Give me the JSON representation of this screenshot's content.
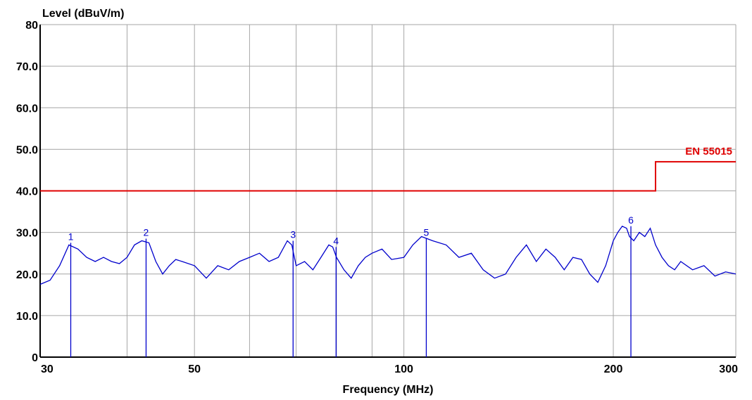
{
  "chart_data": {
    "type": "line",
    "title": "",
    "ylabel": "Level (dBuV/m)",
    "xlabel": "Frequency (MHz)",
    "x_scale": "log",
    "xlim": [
      30,
      300
    ],
    "ylim": [
      0,
      80
    ],
    "grid": true,
    "x_ticks": [
      {
        "value": 30,
        "label": "30"
      },
      {
        "value": 50,
        "label": "50"
      },
      {
        "value": 100,
        "label": "100"
      },
      {
        "value": 200,
        "label": "200"
      },
      {
        "value": 300,
        "label": "300"
      }
    ],
    "x_minor_grid": [
      40,
      60,
      70,
      80,
      90
    ],
    "y_ticks": [
      {
        "value": 0,
        "label": "0"
      },
      {
        "value": 10,
        "label": "10.0"
      },
      {
        "value": 20,
        "label": "20.0"
      },
      {
        "value": 30,
        "label": "30.0"
      },
      {
        "value": 40,
        "label": "40.0"
      },
      {
        "value": 50,
        "label": "50.0"
      },
      {
        "value": 60,
        "label": "60.0"
      },
      {
        "value": 70,
        "label": "70.0"
      },
      {
        "value": 80,
        "label": "80"
      }
    ],
    "limit": {
      "name": "EN 55015",
      "color": "#e00000",
      "x": [
        30,
        230,
        230,
        300
      ],
      "y": [
        40,
        40,
        47,
        47
      ]
    },
    "trace": {
      "color": "#0000cc",
      "x": [
        30,
        31,
        32,
        33,
        34,
        35,
        36,
        37,
        38,
        39,
        40,
        41,
        42,
        43,
        44,
        45,
        46,
        47,
        48,
        50,
        52,
        54,
        56,
        58,
        60,
        62,
        64,
        66,
        68,
        69,
        70,
        72,
        74,
        76,
        78,
        79,
        80,
        82,
        84,
        86,
        88,
        90,
        93,
        96,
        100,
        103,
        106,
        108,
        110,
        115,
        120,
        125,
        130,
        135,
        140,
        145,
        150,
        155,
        160,
        165,
        170,
        175,
        180,
        185,
        190,
        195,
        200,
        203,
        206,
        209,
        211,
        214,
        218,
        222,
        226,
        230,
        235,
        240,
        245,
        250,
        260,
        270,
        280,
        290,
        300
      ],
      "y": [
        17.5,
        18.5,
        22,
        27,
        26,
        24,
        23,
        24,
        23,
        22.5,
        24,
        27,
        28,
        27.5,
        23,
        20,
        22,
        23.5,
        23,
        22,
        19,
        22,
        21,
        23,
        24,
        25,
        23,
        24,
        28,
        27,
        22,
        23,
        21,
        24,
        27,
        26.5,
        24,
        21,
        19,
        22,
        24,
        25,
        26,
        23.5,
        24,
        27,
        29,
        28.5,
        28,
        27,
        24,
        25,
        21,
        19,
        20,
        24,
        27,
        23,
        26,
        24,
        21,
        24,
        23.5,
        20,
        18,
        22,
        28,
        30,
        31.5,
        31,
        29,
        28,
        30,
        29,
        31,
        27,
        24,
        22,
        21,
        23,
        21,
        22,
        19.5,
        20.5,
        20
      ]
    },
    "peaks": [
      {
        "label": "1",
        "x": 33.2,
        "y": 27.5
      },
      {
        "label": "2",
        "x": 42.6,
        "y": 28.5
      },
      {
        "label": "3",
        "x": 69.3,
        "y": 28.0
      },
      {
        "label": "4",
        "x": 79.9,
        "y": 26.5
      },
      {
        "label": "5",
        "x": 107.7,
        "y": 28.5
      },
      {
        "label": "6",
        "x": 212.0,
        "y": 31.5
      }
    ]
  }
}
